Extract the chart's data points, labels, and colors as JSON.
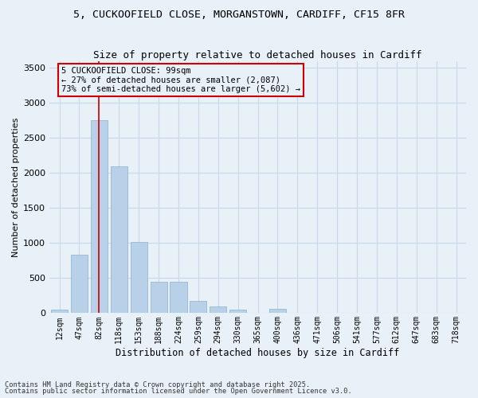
{
  "title_line1": "5, CUCKOOFIELD CLOSE, MORGANSTOWN, CARDIFF, CF15 8FR",
  "title_line2": "Size of property relative to detached houses in Cardiff",
  "xlabel": "Distribution of detached houses by size in Cardiff",
  "ylabel": "Number of detached properties",
  "categories": [
    "12sqm",
    "47sqm",
    "82sqm",
    "118sqm",
    "153sqm",
    "188sqm",
    "224sqm",
    "259sqm",
    "294sqm",
    "330sqm",
    "365sqm",
    "400sqm",
    "436sqm",
    "471sqm",
    "506sqm",
    "541sqm",
    "577sqm",
    "612sqm",
    "647sqm",
    "683sqm",
    "718sqm"
  ],
  "values": [
    50,
    830,
    2750,
    2100,
    1020,
    450,
    450,
    175,
    100,
    50,
    0,
    65,
    0,
    0,
    0,
    0,
    0,
    0,
    0,
    0,
    0
  ],
  "bar_color": "#b8d0e8",
  "bar_edge_color": "#8ab0d0",
  "vline_x": 2,
  "vline_color": "#cc0000",
  "annotation_text": "5 CUCKOOFIELD CLOSE: 99sqm\n← 27% of detached houses are smaller (2,087)\n73% of semi-detached houses are larger (5,602) →",
  "ylim": [
    0,
    3600
  ],
  "yticks": [
    0,
    500,
    1000,
    1500,
    2000,
    2500,
    3000,
    3500
  ],
  "grid_color": "#c8d8e8",
  "background_color": "#e8f0f8",
  "footnote1": "Contains HM Land Registry data © Crown copyright and database right 2025.",
  "footnote2": "Contains public sector information licensed under the Open Government Licence v3.0."
}
